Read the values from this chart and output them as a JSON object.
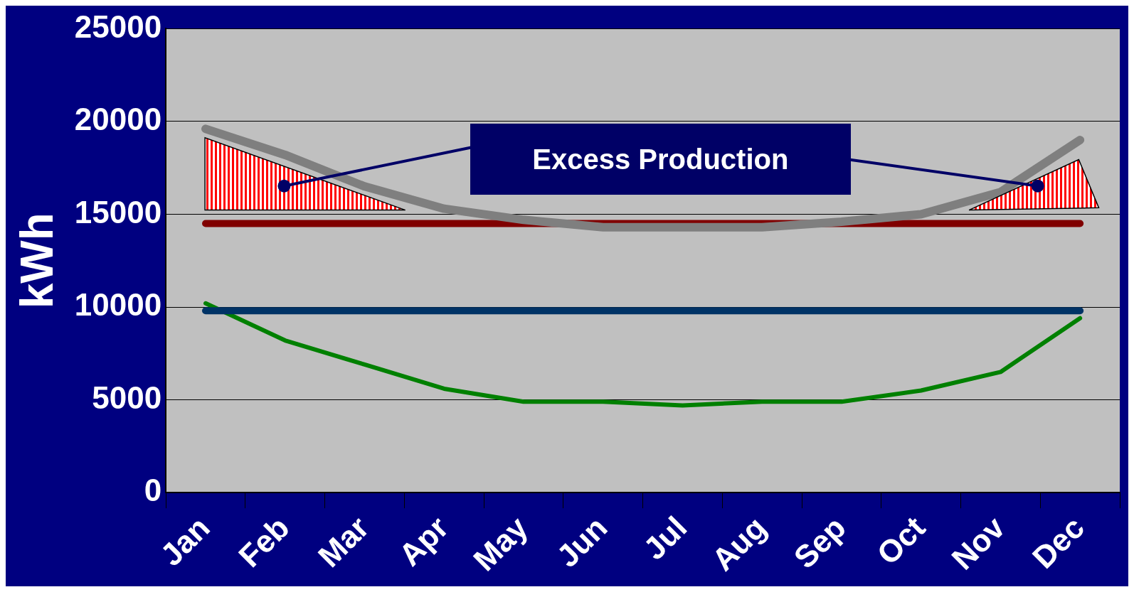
{
  "chart_data": {
    "type": "line",
    "ylabel": "kWh",
    "categories": [
      "Jan",
      "Feb",
      "Mar",
      "Apr",
      "May",
      "Jun",
      "Jul",
      "Aug",
      "Sep",
      "Oct",
      "Nov",
      "Dec"
    ],
    "series": [
      {
        "color": "#7f7f7f",
        "values": [
          19600,
          18200,
          16500,
          15300,
          14700,
          14300,
          14300,
          14300,
          14600,
          15000,
          16200,
          19000
        ]
      },
      {
        "color": "#800000",
        "values": [
          14500,
          14500,
          14500,
          14500,
          14500,
          14500,
          14500,
          14500,
          14500,
          14500,
          14500,
          14500
        ]
      },
      {
        "color": "#003366",
        "values": [
          9800,
          9800,
          9800,
          9800,
          9800,
          9800,
          9800,
          9800,
          9800,
          9800,
          9800,
          9800
        ]
      },
      {
        "color": "#008000",
        "values": [
          10200,
          8200,
          6900,
          5600,
          4900,
          4900,
          4700,
          4900,
          4900,
          5500,
          6500,
          9400
        ]
      }
    ],
    "ylim": [
      0,
      25000
    ],
    "yticks": [
      0,
      5000,
      10000,
      15000,
      20000,
      25000
    ],
    "grid": "y",
    "legend": false,
    "marker": "none",
    "line_style": "solid",
    "annotations": [
      "Excess Production"
    ]
  }
}
